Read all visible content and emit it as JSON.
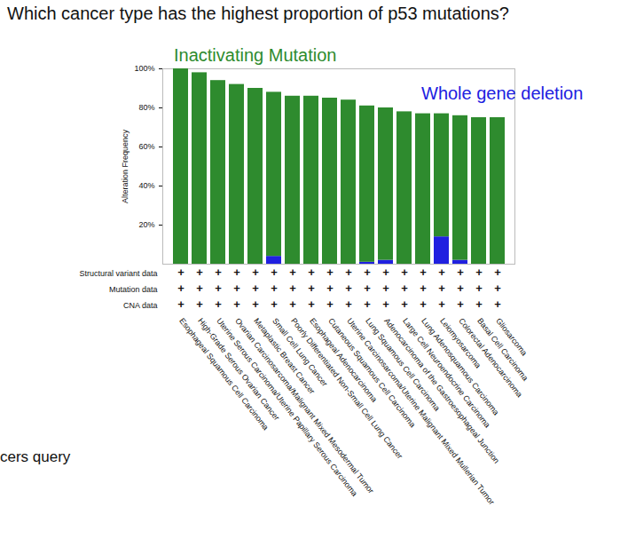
{
  "chart_data": {
    "type": "bar",
    "stacked": true,
    "grid": false,
    "title": "Which cancer type has the highest proportion of p53 mutations?",
    "y_label": "Alteration Frequency",
    "categories": [
      "Esophageal Squamous Cell Carcinoma",
      "High-Grade Serous Ovarian Cancer",
      "Uterine Serous Carcinoma/Uterine Papillary Serous Carcinoma",
      "Ovarian Carcinosarcoma/Malignant Mixed Mesodermal Tumor",
      "Metaplastic Breast Cancer",
      "Small Cell Lung Cancer",
      "Poorly Differentiated Non-Small Cell Lung Cancer",
      "Esophageal Adenocarcinoma",
      "Cutaneous Squamous Cell Carcinoma",
      "Uterine Carcinosarcoma/Uterine Malignant Mixed Mullerian Tumor",
      "Lung Squamous Cell Carcinoma",
      "Adenocarcinoma of the Gastroesophageal Junction",
      "Large Cell Neuroendocrine Carcinoma",
      "Lung Adenosquamous Carcinoma",
      "Leiomyosarcoma",
      "Colorectal Adenocarcinoma",
      "Basal Cell Carcinoma",
      "Gliosarcoma"
    ],
    "series": [
      {
        "name": "Whole gene deletion",
        "color": "#2020e0",
        "values": [
          0,
          0,
          0,
          0,
          0,
          4,
          0,
          0,
          0,
          0,
          1,
          2,
          0,
          0,
          14,
          2,
          0,
          0
        ]
      },
      {
        "name": "Inactivating Mutation",
        "color": "#2e8b2e",
        "values": [
          100,
          98,
          94,
          92,
          90,
          84,
          86,
          86,
          85,
          84,
          80,
          78,
          78,
          77,
          63,
          74,
          75,
          75
        ]
      }
    ],
    "ylim": [
      0,
      100
    ],
    "yticks": [
      {
        "value": 20,
        "label": "20%"
      },
      {
        "value": 40,
        "label": "40%"
      },
      {
        "value": 60,
        "label": "60%"
      },
      {
        "value": 80,
        "label": "80%"
      },
      {
        "value": 100,
        "label": "100%"
      }
    ],
    "profile_rows": [
      "Structural variant data",
      "Mutation data",
      "CNA data"
    ],
    "profile_mark": "+",
    "annotations": [
      "cers query"
    ]
  }
}
